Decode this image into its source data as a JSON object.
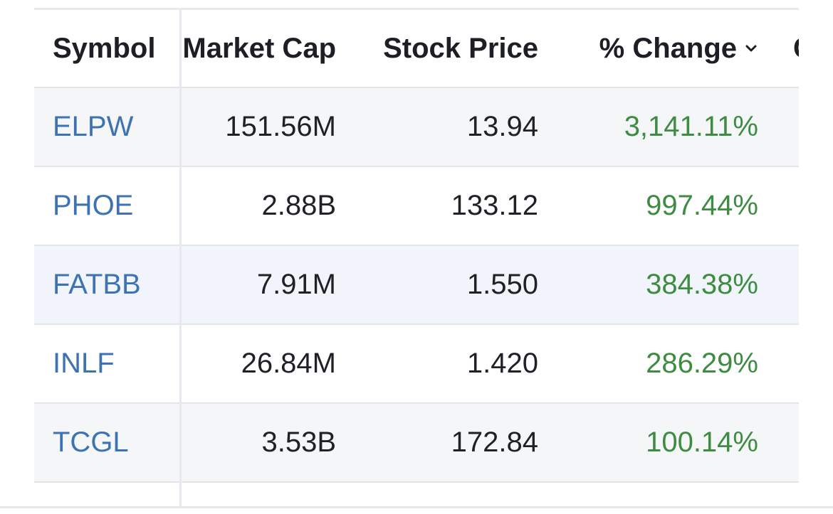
{
  "table": {
    "columns": {
      "symbol": "Symbol",
      "market_cap": "Market Cap",
      "stock_price": "Stock Price",
      "pct_change": "% Change",
      "extra": "C"
    },
    "sort": {
      "column": "% Change",
      "direction": "descending",
      "icon": "chevron-down-icon"
    },
    "rows": [
      {
        "symbol": "ELPW",
        "market_cap": "151.56M",
        "stock_price": "13.94",
        "pct_change": "3,141.11%"
      },
      {
        "symbol": "PHOE",
        "market_cap": "2.88B",
        "stock_price": "133.12",
        "pct_change": "997.44%"
      },
      {
        "symbol": "FATBB",
        "market_cap": "7.91M",
        "stock_price": "1.550",
        "pct_change": "384.38%"
      },
      {
        "symbol": "INLF",
        "market_cap": "26.84M",
        "stock_price": "1.420",
        "pct_change": "286.29%"
      },
      {
        "symbol": "TCGL",
        "market_cap": "3.53B",
        "stock_price": "172.84",
        "pct_change": "100.14%"
      }
    ]
  },
  "colors": {
    "symbol_link": "#3d72b3",
    "positive_change": "#3e8b42",
    "text": "#1f2126",
    "row_alt": "#f5f6f8",
    "row_highlight": "#f1f5fb"
  }
}
